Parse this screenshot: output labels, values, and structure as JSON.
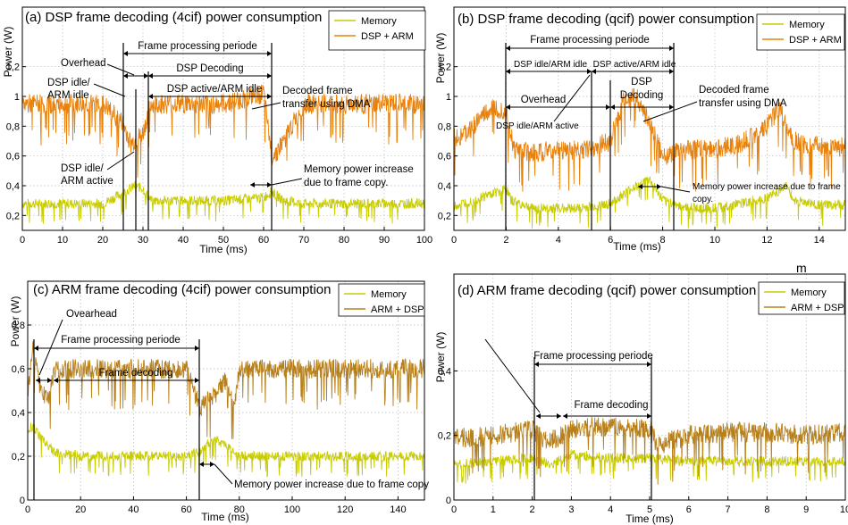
{
  "colors": {
    "memory": "#c8cc00",
    "dsp_arm_orange": "#e8820c",
    "arm_dsp_brown": "#b8801a"
  },
  "stray_mark": "m",
  "chart_data": [
    {
      "id": "a",
      "type": "line",
      "title": "(a) DSP frame decoding (4cif) power consumption",
      "xlabel": "Time (ms)",
      "ylabel": "Power (W)",
      "xlim": [
        0,
        100
      ],
      "ylim": [
        0.1,
        1.6
      ],
      "xticks": [
        0,
        10,
        20,
        30,
        40,
        50,
        60,
        70,
        80,
        90,
        100
      ],
      "xtick_labels": [
        "0",
        "10",
        "20",
        "30",
        "40",
        "50",
        "60",
        "70",
        "80",
        "90",
        "100"
      ],
      "yticks": [
        0.2,
        0.4,
        0.6,
        0.8,
        1,
        1.2
      ],
      "ytick_labels": [
        "0,2",
        "0,4",
        "0,6",
        "0,8",
        "1",
        "1,2"
      ],
      "grid": true,
      "legend": "top-right",
      "series": [
        {
          "name": "Memory",
          "color_key": "memory",
          "x": [
            0,
            10,
            20,
            25,
            28,
            30,
            32,
            40,
            50,
            60,
            62,
            65,
            70,
            80,
            90,
            100
          ],
          "y": [
            0.28,
            0.28,
            0.28,
            0.35,
            0.4,
            0.38,
            0.3,
            0.3,
            0.3,
            0.32,
            0.36,
            0.3,
            0.28,
            0.28,
            0.28,
            0.28
          ]
        },
        {
          "name": "DSP + ARM",
          "color_key": "dsp_arm_orange",
          "x": [
            0,
            10,
            20,
            25,
            27,
            28,
            30,
            32,
            40,
            50,
            55,
            60,
            62,
            63,
            65,
            70,
            80,
            90,
            100
          ],
          "y": [
            0.95,
            0.95,
            0.95,
            0.82,
            0.68,
            0.7,
            0.75,
            0.95,
            0.95,
            0.95,
            0.98,
            1.02,
            0.6,
            0.62,
            0.7,
            0.95,
            0.95,
            0.95,
            0.95
          ]
        }
      ],
      "annotations": [
        "Frame processing periode",
        "Overhead",
        "DSP Decoding",
        "DSP idle/ ARM idle",
        "DSP active/ARM idle",
        "Decoded frame transfer using DMA",
        "DSP idle/ ARM active",
        "Memory power increase due to frame copy."
      ]
    },
    {
      "id": "b",
      "type": "line",
      "title": "(b) DSP frame decoding (qcif) power consumption",
      "xlabel": "Time (ms)",
      "ylabel": "Power (W)",
      "xlim": [
        0,
        15
      ],
      "ylim": [
        0.1,
        1.6
      ],
      "xticks": [
        0,
        2,
        4,
        6,
        8,
        10,
        12,
        14
      ],
      "xtick_labels": [
        "0",
        "2",
        "4",
        "6",
        "8",
        "10",
        "12",
        "14"
      ],
      "yticks": [
        0.2,
        0.4,
        0.6,
        0.8,
        1,
        1.2
      ],
      "ytick_labels": [
        "0,2",
        "0,4",
        "0,6",
        "0,8",
        "1",
        "1,2"
      ],
      "grid": true,
      "legend": "top-right",
      "series": [
        {
          "name": "Memory",
          "color_key": "memory",
          "x": [
            0,
            1,
            2,
            2.2,
            3,
            4,
            5,
            6,
            7,
            7.5,
            8,
            9,
            10,
            11,
            12,
            12.8,
            13,
            14,
            15
          ],
          "y": [
            0.26,
            0.32,
            0.38,
            0.3,
            0.25,
            0.25,
            0.25,
            0.28,
            0.4,
            0.44,
            0.3,
            0.25,
            0.25,
            0.28,
            0.32,
            0.4,
            0.3,
            0.27,
            0.27
          ]
        },
        {
          "name": "DSP + ARM",
          "color_key": "dsp_arm_orange",
          "x": [
            0,
            0.5,
            1,
            1.5,
            2,
            2.3,
            3,
            4,
            5,
            6,
            6.5,
            7,
            7.5,
            8,
            9,
            10,
            11,
            12,
            12.5,
            13,
            14,
            15
          ],
          "y": [
            0.72,
            0.75,
            0.85,
            0.92,
            0.9,
            0.64,
            0.62,
            0.64,
            0.64,
            0.7,
            0.98,
            1.0,
            0.82,
            0.6,
            0.64,
            0.65,
            0.68,
            0.8,
            0.92,
            0.7,
            0.66,
            0.66
          ]
        }
      ],
      "annotations": [
        "Frame processing periode",
        "DSP idle/ARM idle",
        "DSP active/ARM idle",
        "Overhead",
        "DSP Decoding",
        "DSP idle/ARM active",
        "Decoded frame transfer using DMA",
        "Memory power increase due to frame copy."
      ]
    },
    {
      "id": "c",
      "type": "line",
      "title": "(c) ARM frame decoding (4cif) power consumption",
      "xlabel": "Time (ms)",
      "ylabel": "Power (W)",
      "xlim": [
        0,
        150
      ],
      "ylim": [
        0,
        1.0
      ],
      "xticks": [
        0,
        20,
        40,
        60,
        80,
        100,
        120,
        140
      ],
      "xtick_labels": [
        "0",
        "20",
        "40",
        "60",
        "80",
        "100",
        "120",
        "140"
      ],
      "yticks": [
        0,
        0.2,
        0.4,
        0.6,
        0.8
      ],
      "ytick_labels": [
        "0",
        "0,2",
        "0,4",
        "0,6",
        "0,8"
      ],
      "grid": true,
      "legend": "top-right",
      "series": [
        {
          "name": "Memory",
          "color_key": "memory",
          "x": [
            0,
            2,
            5,
            8,
            10,
            20,
            40,
            60,
            65,
            70,
            75,
            80,
            100,
            120,
            140,
            150
          ],
          "y": [
            0.32,
            0.34,
            0.28,
            0.25,
            0.22,
            0.2,
            0.2,
            0.2,
            0.22,
            0.28,
            0.25,
            0.2,
            0.2,
            0.2,
            0.2,
            0.2
          ]
        },
        {
          "name": "ARM + DSP",
          "color_key": "arm_dsp_brown",
          "x": [
            0,
            2,
            5,
            8,
            10,
            20,
            40,
            60,
            65,
            68,
            72,
            75,
            78,
            80,
            100,
            120,
            140,
            150
          ],
          "y": [
            0.5,
            0.7,
            0.5,
            0.45,
            0.6,
            0.6,
            0.6,
            0.6,
            0.42,
            0.45,
            0.5,
            0.55,
            0.42,
            0.6,
            0.6,
            0.6,
            0.6,
            0.6
          ]
        }
      ],
      "annotations": [
        "Ovearhead",
        "Frame processing periode",
        "Frame decoding",
        "Memory power increase due to frame copy"
      ]
    },
    {
      "id": "d",
      "type": "line",
      "title": "(d) ARM frame decoding (qcif) power consumption",
      "xlabel": "Time (ms)",
      "ylabel": "Power (W)",
      "xlim": [
        0,
        10
      ],
      "ylim": [
        0,
        0.7
      ],
      "xticks": [
        0,
        1,
        2,
        3,
        4,
        5,
        6,
        7,
        8,
        9,
        10
      ],
      "xtick_labels": [
        "0",
        "1",
        "2",
        "3",
        "4",
        "5",
        "6",
        "7",
        "8",
        "9",
        "10"
      ],
      "yticks": [
        0,
        0.2,
        0.4
      ],
      "ytick_labels": [
        "0",
        "0,2",
        "0,4"
      ],
      "grid": true,
      "legend": "top-right",
      "series": [
        {
          "name": "Memory",
          "color_key": "memory",
          "x": [
            0,
            1,
            2,
            2.5,
            3,
            4,
            5,
            6,
            7,
            8,
            9,
            10
          ],
          "y": [
            0.11,
            0.12,
            0.13,
            0.11,
            0.14,
            0.13,
            0.13,
            0.12,
            0.12,
            0.12,
            0.12,
            0.12
          ]
        },
        {
          "name": "ARM + DSP",
          "color_key": "arm_dsp_brown",
          "x": [
            0,
            1,
            2,
            2.3,
            2.8,
            3,
            4,
            5,
            5.2,
            6,
            7,
            8,
            9,
            10
          ],
          "y": [
            0.19,
            0.2,
            0.22,
            0.18,
            0.2,
            0.22,
            0.23,
            0.22,
            0.17,
            0.2,
            0.21,
            0.21,
            0.2,
            0.21
          ]
        }
      ],
      "annotations": [
        "Frame processing periode",
        "Frame decoding"
      ]
    }
  ]
}
